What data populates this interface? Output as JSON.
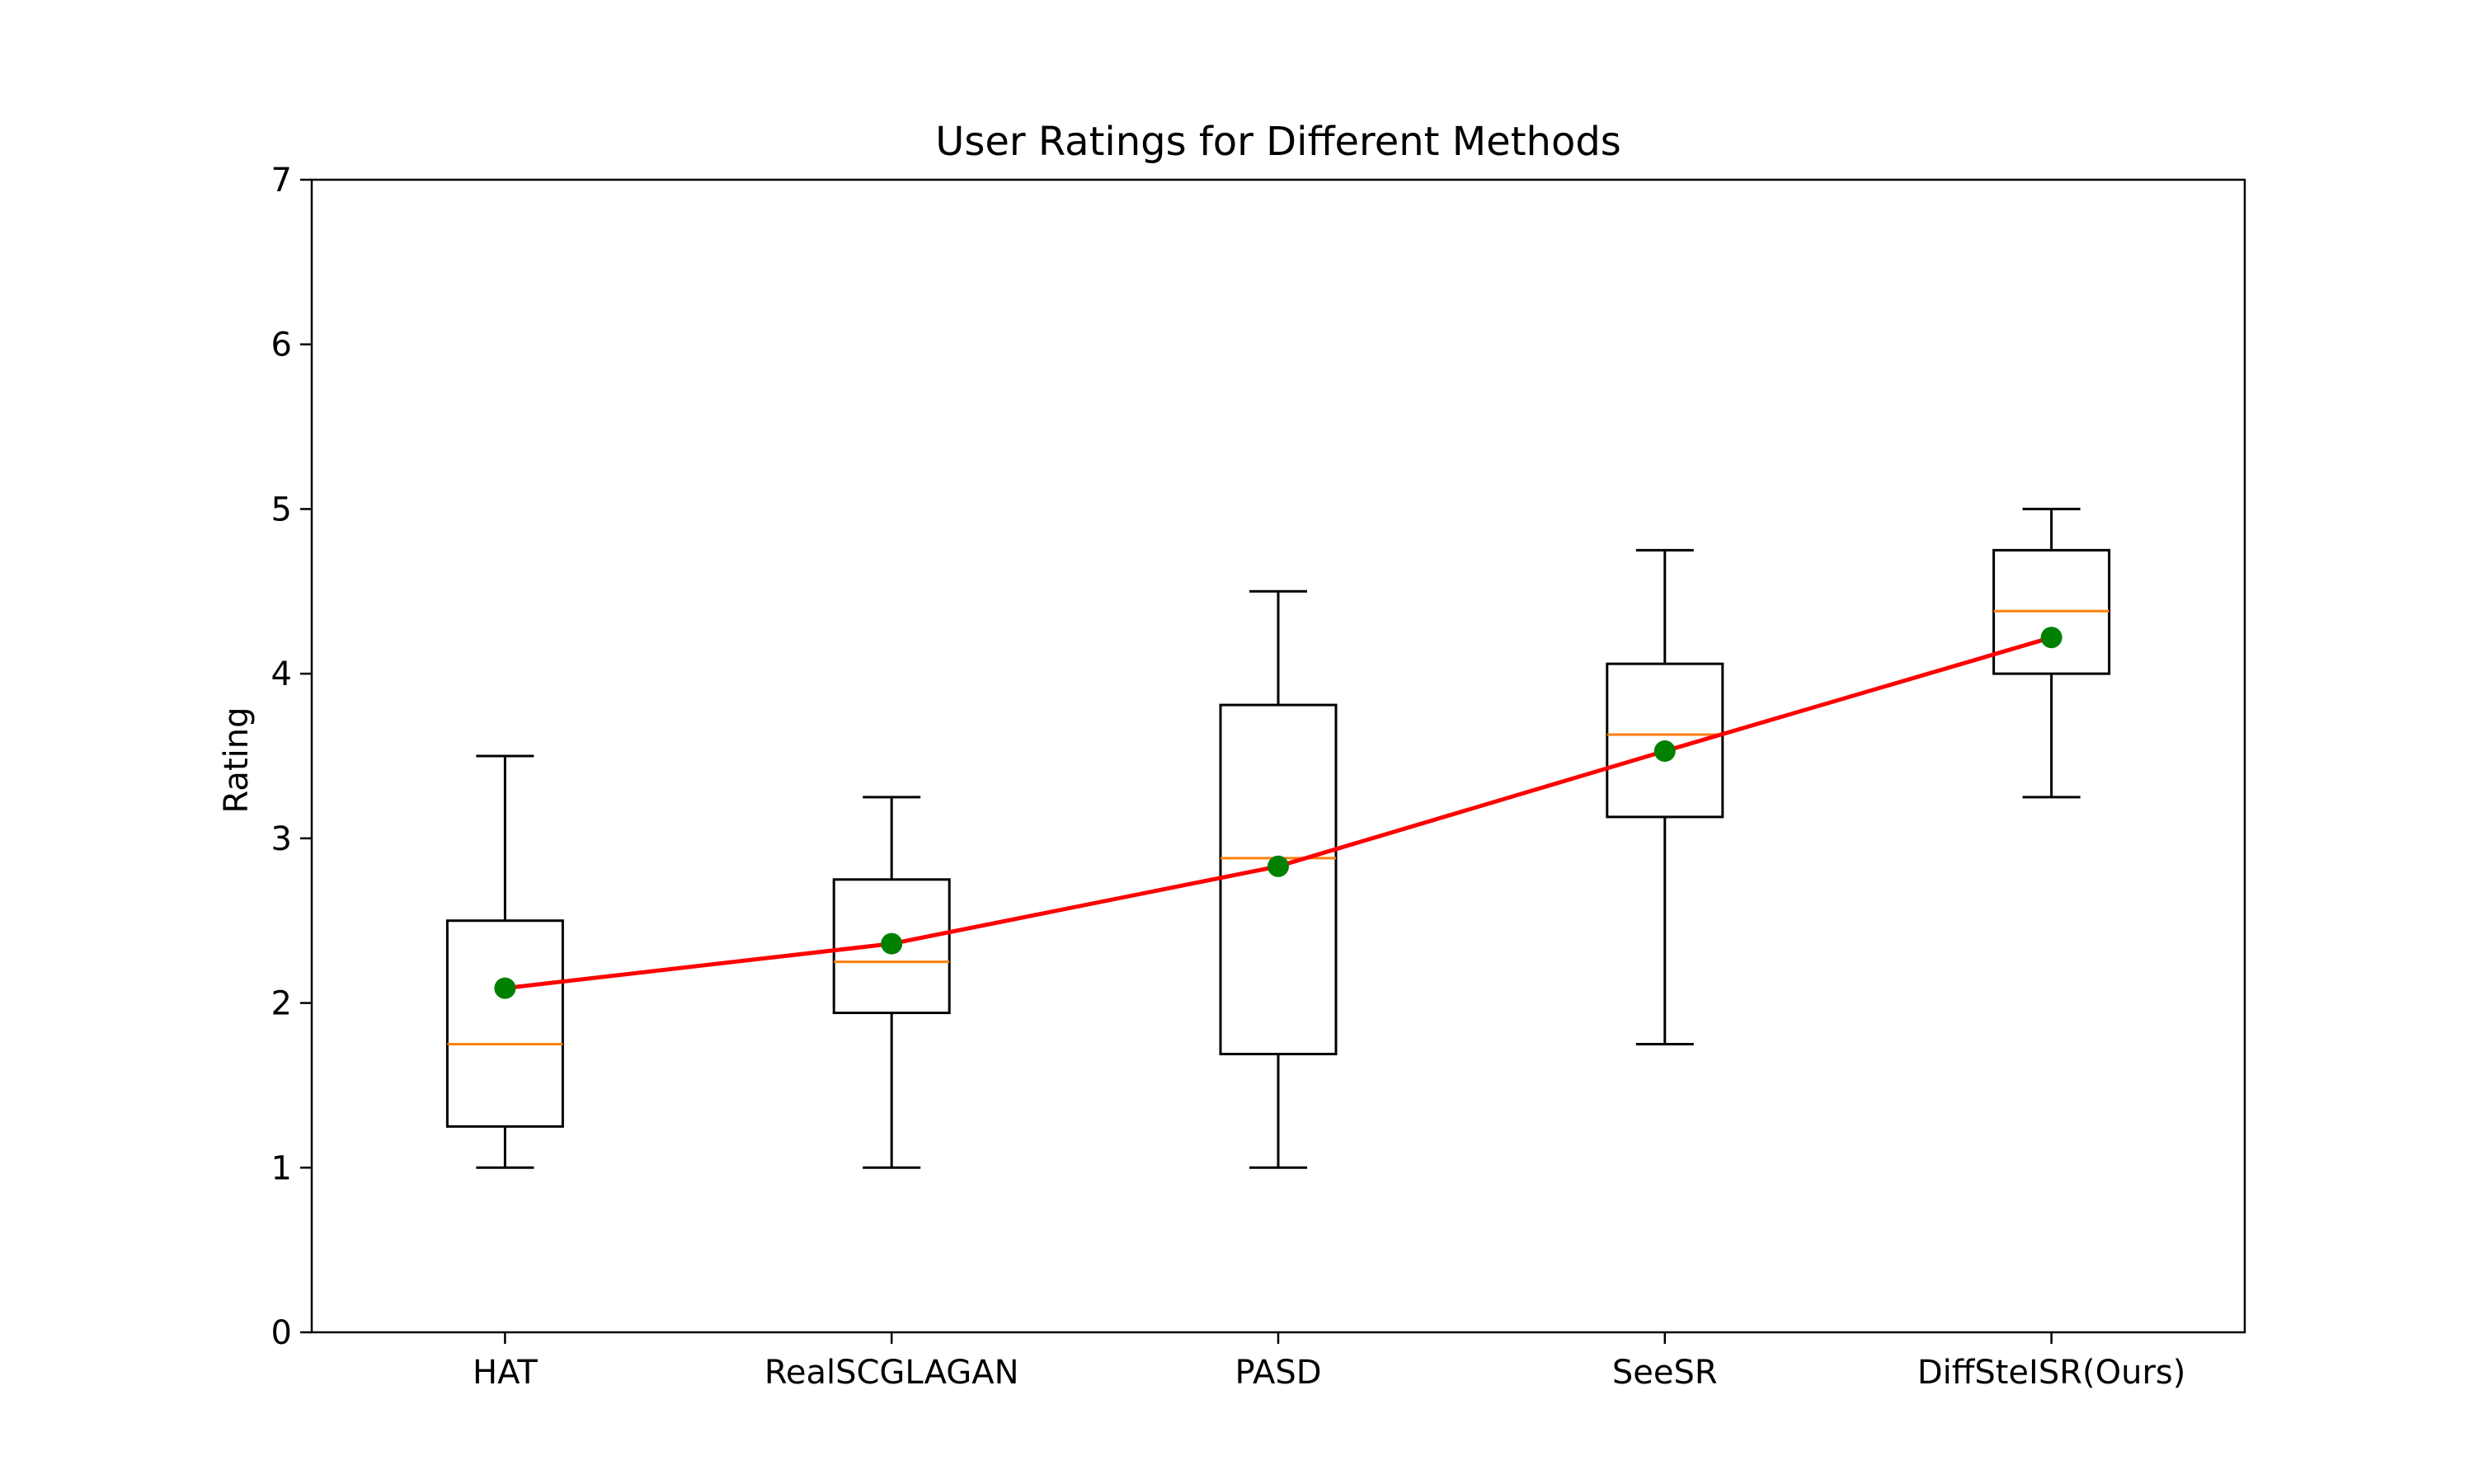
{
  "chart_data": {
    "type": "box",
    "title": "User Ratings for Different Methods",
    "xlabel": "",
    "ylabel": "Rating",
    "ylim": [
      0,
      7
    ],
    "yticks": [
      0,
      1,
      2,
      3,
      4,
      5,
      6,
      7
    ],
    "grid": false,
    "categories": [
      "HAT",
      "RealSCGLAGAN",
      "PASD",
      "SeeSR",
      "DiffSteISR(Ours)"
    ],
    "boxes": [
      {
        "whisker_low": 1.0,
        "q1": 1.25,
        "median": 1.75,
        "q3": 2.5,
        "whisker_high": 3.5
      },
      {
        "whisker_low": 1.0,
        "q1": 1.94,
        "median": 2.25,
        "q3": 2.75,
        "whisker_high": 3.25
      },
      {
        "whisker_low": 1.0,
        "q1": 1.69,
        "median": 2.88,
        "q3": 3.81,
        "whisker_high": 4.5
      },
      {
        "whisker_low": 1.75,
        "q1": 3.13,
        "median": 3.63,
        "q3": 4.06,
        "whisker_high": 4.75
      },
      {
        "whisker_low": 3.25,
        "q1": 4.0,
        "median": 4.38,
        "q3": 4.75,
        "whisker_high": 5.0
      }
    ],
    "means": [
      2.09,
      2.36,
      2.83,
      3.53,
      4.22
    ],
    "colors": {
      "box": "#000000",
      "median": "#ff7f0e",
      "mean_line": "#ff0000",
      "mean_marker": "#008000"
    }
  }
}
